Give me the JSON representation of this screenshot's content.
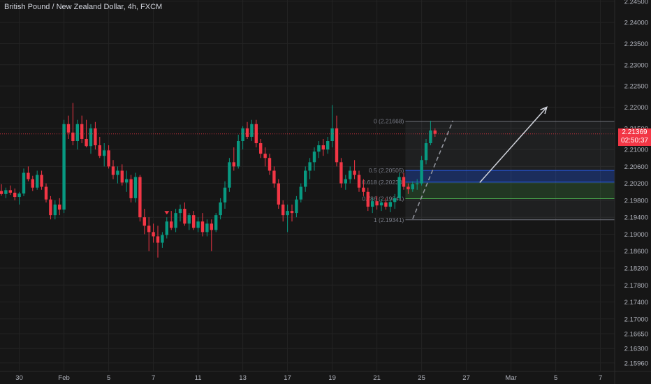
{
  "header": {
    "title": "British Pound / New Zealand Dollar, 4h, FXCM"
  },
  "colors": {
    "background": "#161616",
    "up": "#089981",
    "down": "#f23645",
    "grid": "#232323",
    "axis_text": "#b2b5be",
    "fib_text": "#787b86"
  },
  "last_price": {
    "value": "2.21369",
    "countdown": "02:50:37"
  },
  "chart_data": {
    "type": "candlestick",
    "symbol": "GBPNZD",
    "timeframe": "4h",
    "y_ticks": [
      "2.24500",
      "2.24000",
      "2.23500",
      "2.23000",
      "2.22500",
      "2.22000",
      "2.21500",
      "2.21000",
      "2.20600",
      "2.20200",
      "2.19800",
      "2.19400",
      "2.19000",
      "2.18600",
      "2.18200",
      "2.17800",
      "2.17400",
      "2.17000",
      "2.16650",
      "2.16300",
      "2.15960"
    ],
    "ylim": [
      2.1576,
      2.2453
    ],
    "x_ticks": [
      {
        "label": "30",
        "index": 4
      },
      {
        "label": "Feb",
        "index": 14
      },
      {
        "label": "5",
        "index": 24
      },
      {
        "label": "7",
        "index": 34
      },
      {
        "label": "11",
        "index": 44
      },
      {
        "label": "13",
        "index": 54
      },
      {
        "label": "17",
        "index": 64
      },
      {
        "label": "19",
        "index": 74
      },
      {
        "label": "21",
        "index": 84
      },
      {
        "label": "25",
        "index": 94
      },
      {
        "label": "27",
        "index": 104
      },
      {
        "label": "Mar",
        "index": 114
      },
      {
        "label": "5",
        "index": 124
      },
      {
        "label": "7",
        "index": 134
      }
    ],
    "candles": [
      [
        2.2002,
        2.2018,
        2.1991,
        2.1995
      ],
      [
        2.1995,
        2.201,
        2.1985,
        2.2004
      ],
      [
        2.2004,
        2.2015,
        2.1993,
        2.1998
      ],
      [
        2.1998,
        2.2008,
        2.198,
        2.1988
      ],
      [
        2.1988,
        2.2,
        2.197,
        2.1996
      ],
      [
        2.1996,
        2.2055,
        2.199,
        2.2045
      ],
      [
        2.2045,
        2.206,
        2.2025,
        2.203
      ],
      [
        2.203,
        2.2038,
        2.2002,
        2.201
      ],
      [
        2.201,
        2.205,
        2.2005,
        2.204
      ],
      [
        2.204,
        2.205,
        2.2005,
        2.2012
      ],
      [
        2.2012,
        2.202,
        2.1975,
        2.1982
      ],
      [
        2.1982,
        2.199,
        2.1935,
        2.1945
      ],
      [
        2.1945,
        2.198,
        2.1935,
        2.197
      ],
      [
        2.197,
        2.1985,
        2.1945,
        2.1958
      ],
      [
        2.1958,
        2.217,
        2.195,
        2.216
      ],
      [
        2.216,
        2.218,
        2.2125,
        2.214
      ],
      [
        2.214,
        2.221,
        2.211,
        2.212
      ],
      [
        2.212,
        2.217,
        2.21,
        2.216
      ],
      [
        2.216,
        2.218,
        2.2115,
        2.2125
      ],
      [
        2.2125,
        2.217,
        2.2105,
        2.2108
      ],
      [
        2.2108,
        2.216,
        2.209,
        2.215
      ],
      [
        2.215,
        2.2165,
        2.21,
        2.211
      ],
      [
        2.211,
        2.213,
        2.208,
        2.2085
      ],
      [
        2.2085,
        2.2115,
        2.206,
        2.2098
      ],
      [
        2.2098,
        2.211,
        2.2055,
        2.206
      ],
      [
        2.206,
        2.2075,
        2.203,
        2.204
      ],
      [
        2.204,
        2.206,
        2.202,
        2.205
      ],
      [
        2.205,
        2.2065,
        2.2015,
        2.2022
      ],
      [
        2.2022,
        2.205,
        2.2,
        2.203
      ],
      [
        2.203,
        2.204,
        2.1975,
        2.1985
      ],
      [
        2.1985,
        2.2045,
        2.1975,
        2.2035
      ],
      [
        2.2035,
        2.204,
        2.193,
        2.194
      ],
      [
        2.194,
        2.196,
        2.19,
        2.192
      ],
      [
        2.192,
        2.194,
        2.186,
        2.1905
      ],
      [
        2.1905,
        2.1925,
        2.188,
        2.1895
      ],
      [
        2.1895,
        2.192,
        2.1845,
        2.188
      ],
      [
        2.188,
        2.1905,
        2.1868,
        2.1898
      ],
      [
        2.1898,
        2.194,
        2.189,
        2.193
      ],
      [
        2.193,
        2.1955,
        2.191,
        2.1915
      ],
      [
        2.1915,
        2.196,
        2.1905,
        2.195
      ],
      [
        2.195,
        2.197,
        2.193,
        2.196
      ],
      [
        2.196,
        2.1975,
        2.192,
        2.1925
      ],
      [
        2.1925,
        2.195,
        2.191,
        2.1945
      ],
      [
        2.1945,
        2.1955,
        2.191,
        2.1915
      ],
      [
        2.1915,
        2.194,
        2.1905,
        2.193
      ],
      [
        2.193,
        2.195,
        2.1895,
        2.1905
      ],
      [
        2.1905,
        2.1935,
        2.1895,
        2.1925
      ],
      [
        2.1925,
        2.1935,
        2.186,
        2.191
      ],
      [
        2.191,
        2.195,
        2.1905,
        2.1945
      ],
      [
        2.1945,
        2.1985,
        2.1935,
        2.1975
      ],
      [
        2.1975,
        2.2025,
        2.196,
        2.201
      ],
      [
        2.201,
        2.208,
        2.2,
        2.207
      ],
      [
        2.207,
        2.2105,
        2.205,
        2.206
      ],
      [
        2.206,
        2.2135,
        2.2055,
        2.212
      ],
      [
        2.212,
        2.2155,
        2.21,
        2.215
      ],
      [
        2.215,
        2.2165,
        2.2125,
        2.213
      ],
      [
        2.213,
        2.217,
        2.212,
        2.216
      ],
      [
        2.216,
        2.217,
        2.2105,
        2.2115
      ],
      [
        2.2115,
        2.2125,
        2.208,
        2.209
      ],
      [
        2.209,
        2.2105,
        2.206,
        2.208
      ],
      [
        2.208,
        2.209,
        2.204,
        2.205
      ],
      [
        2.205,
        2.206,
        2.201,
        2.202
      ],
      [
        2.202,
        2.203,
        2.196,
        2.197
      ],
      [
        2.197,
        2.198,
        2.193,
        2.1945
      ],
      [
        2.1945,
        2.197,
        2.1905,
        2.1955
      ],
      [
        2.1955,
        2.197,
        2.193,
        2.195
      ],
      [
        2.195,
        2.199,
        2.194,
        2.1982
      ],
      [
        2.1982,
        2.202,
        2.1975,
        2.2012
      ],
      [
        2.2012,
        2.206,
        2.2,
        2.205
      ],
      [
        2.205,
        2.208,
        2.203,
        2.207
      ],
      [
        2.207,
        2.2105,
        2.205,
        2.2095
      ],
      [
        2.2095,
        2.212,
        2.208,
        2.211
      ],
      [
        2.211,
        2.2125,
        2.2085,
        2.21
      ],
      [
        2.21,
        2.213,
        2.209,
        2.212
      ],
      [
        2.212,
        2.2205,
        2.2105,
        2.215
      ],
      [
        2.215,
        2.218,
        2.206,
        2.207
      ],
      [
        2.207,
        2.208,
        2.201,
        2.202
      ],
      [
        2.202,
        2.204,
        2.2005,
        2.203
      ],
      [
        2.203,
        2.206,
        2.202,
        2.205
      ],
      [
        2.205,
        2.2075,
        2.203,
        2.204
      ],
      [
        2.204,
        2.205,
        2.2,
        2.201
      ],
      [
        2.201,
        2.203,
        2.199,
        2.2
      ],
      [
        2.2,
        2.201,
        2.1955,
        2.1965
      ],
      [
        2.1965,
        2.1985,
        2.195,
        2.1978
      ],
      [
        2.1978,
        2.199,
        2.1958,
        2.1968
      ],
      [
        2.1968,
        2.1983,
        2.1955,
        2.1975
      ],
      [
        2.1975,
        2.1985,
        2.1958,
        2.1965
      ],
      [
        2.1965,
        2.1982,
        2.1952,
        2.1976
      ],
      [
        2.1976,
        2.1995,
        2.196,
        2.1985
      ],
      [
        2.1985,
        2.2045,
        2.198,
        2.2035
      ],
      [
        2.2035,
        2.2045,
        2.2005,
        2.2012
      ],
      [
        2.2012,
        2.202,
        2.1995,
        2.2006
      ],
      [
        2.2006,
        2.2025,
        2.2,
        2.2018
      ],
      [
        2.2018,
        2.203,
        2.2005,
        2.202
      ],
      [
        2.202,
        2.2085,
        2.2015,
        2.2075
      ],
      [
        2.2075,
        2.2125,
        2.2065,
        2.2115
      ],
      [
        2.2115,
        2.2168,
        2.211,
        2.2145
      ],
      [
        2.2145,
        2.215,
        2.213,
        2.2137
      ]
    ],
    "last_price_line": 2.21369,
    "fib_retracement": {
      "levels": [
        {
          "label": "0 (2.21668)",
          "value": 2.21668
        },
        {
          "label": "0.5 (2.20505)",
          "value": 2.20505
        },
        {
          "label": "0.618 (2.20230)",
          "value": 2.2023
        },
        {
          "label": "0.786 (2.19841)",
          "value": 2.19841
        },
        {
          "label": "1 (2.19341)",
          "value": 2.19341
        }
      ],
      "start_index": 91
    },
    "annotations": {
      "fall_marker_index": 37,
      "arrow": {
        "from": {
          "index": 107,
          "value": 2.2022
        },
        "to": {
          "index": 122,
          "value": 2.22
        }
      },
      "dashed_trend": {
        "from": {
          "index": 92,
          "value": 2.1936
        },
        "to": {
          "index": 101,
          "value": 2.2168
        }
      }
    }
  }
}
